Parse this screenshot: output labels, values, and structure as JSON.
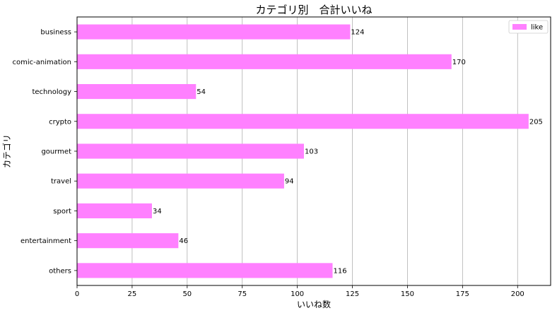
{
  "chart_data": {
    "type": "bar",
    "orientation": "horizontal",
    "title": "カテゴリ別　合計いいね",
    "xlabel": "いいね数",
    "ylabel": "カテゴリ",
    "categories": [
      "business",
      "comic-animation",
      "technology",
      "crypto",
      "gourmet",
      "travel",
      "sport",
      "entertainment",
      "others"
    ],
    "series": [
      {
        "name": "like",
        "values": [
          124,
          170,
          54,
          205,
          103,
          94,
          34,
          46,
          116
        ],
        "color": "#ff80ff"
      }
    ],
    "xlim": [
      0,
      215
    ],
    "xticks": [
      0,
      25,
      50,
      75,
      100,
      125,
      150,
      175,
      200
    ],
    "grid": "x",
    "legend_position": "top-right",
    "data_labels": true
  }
}
